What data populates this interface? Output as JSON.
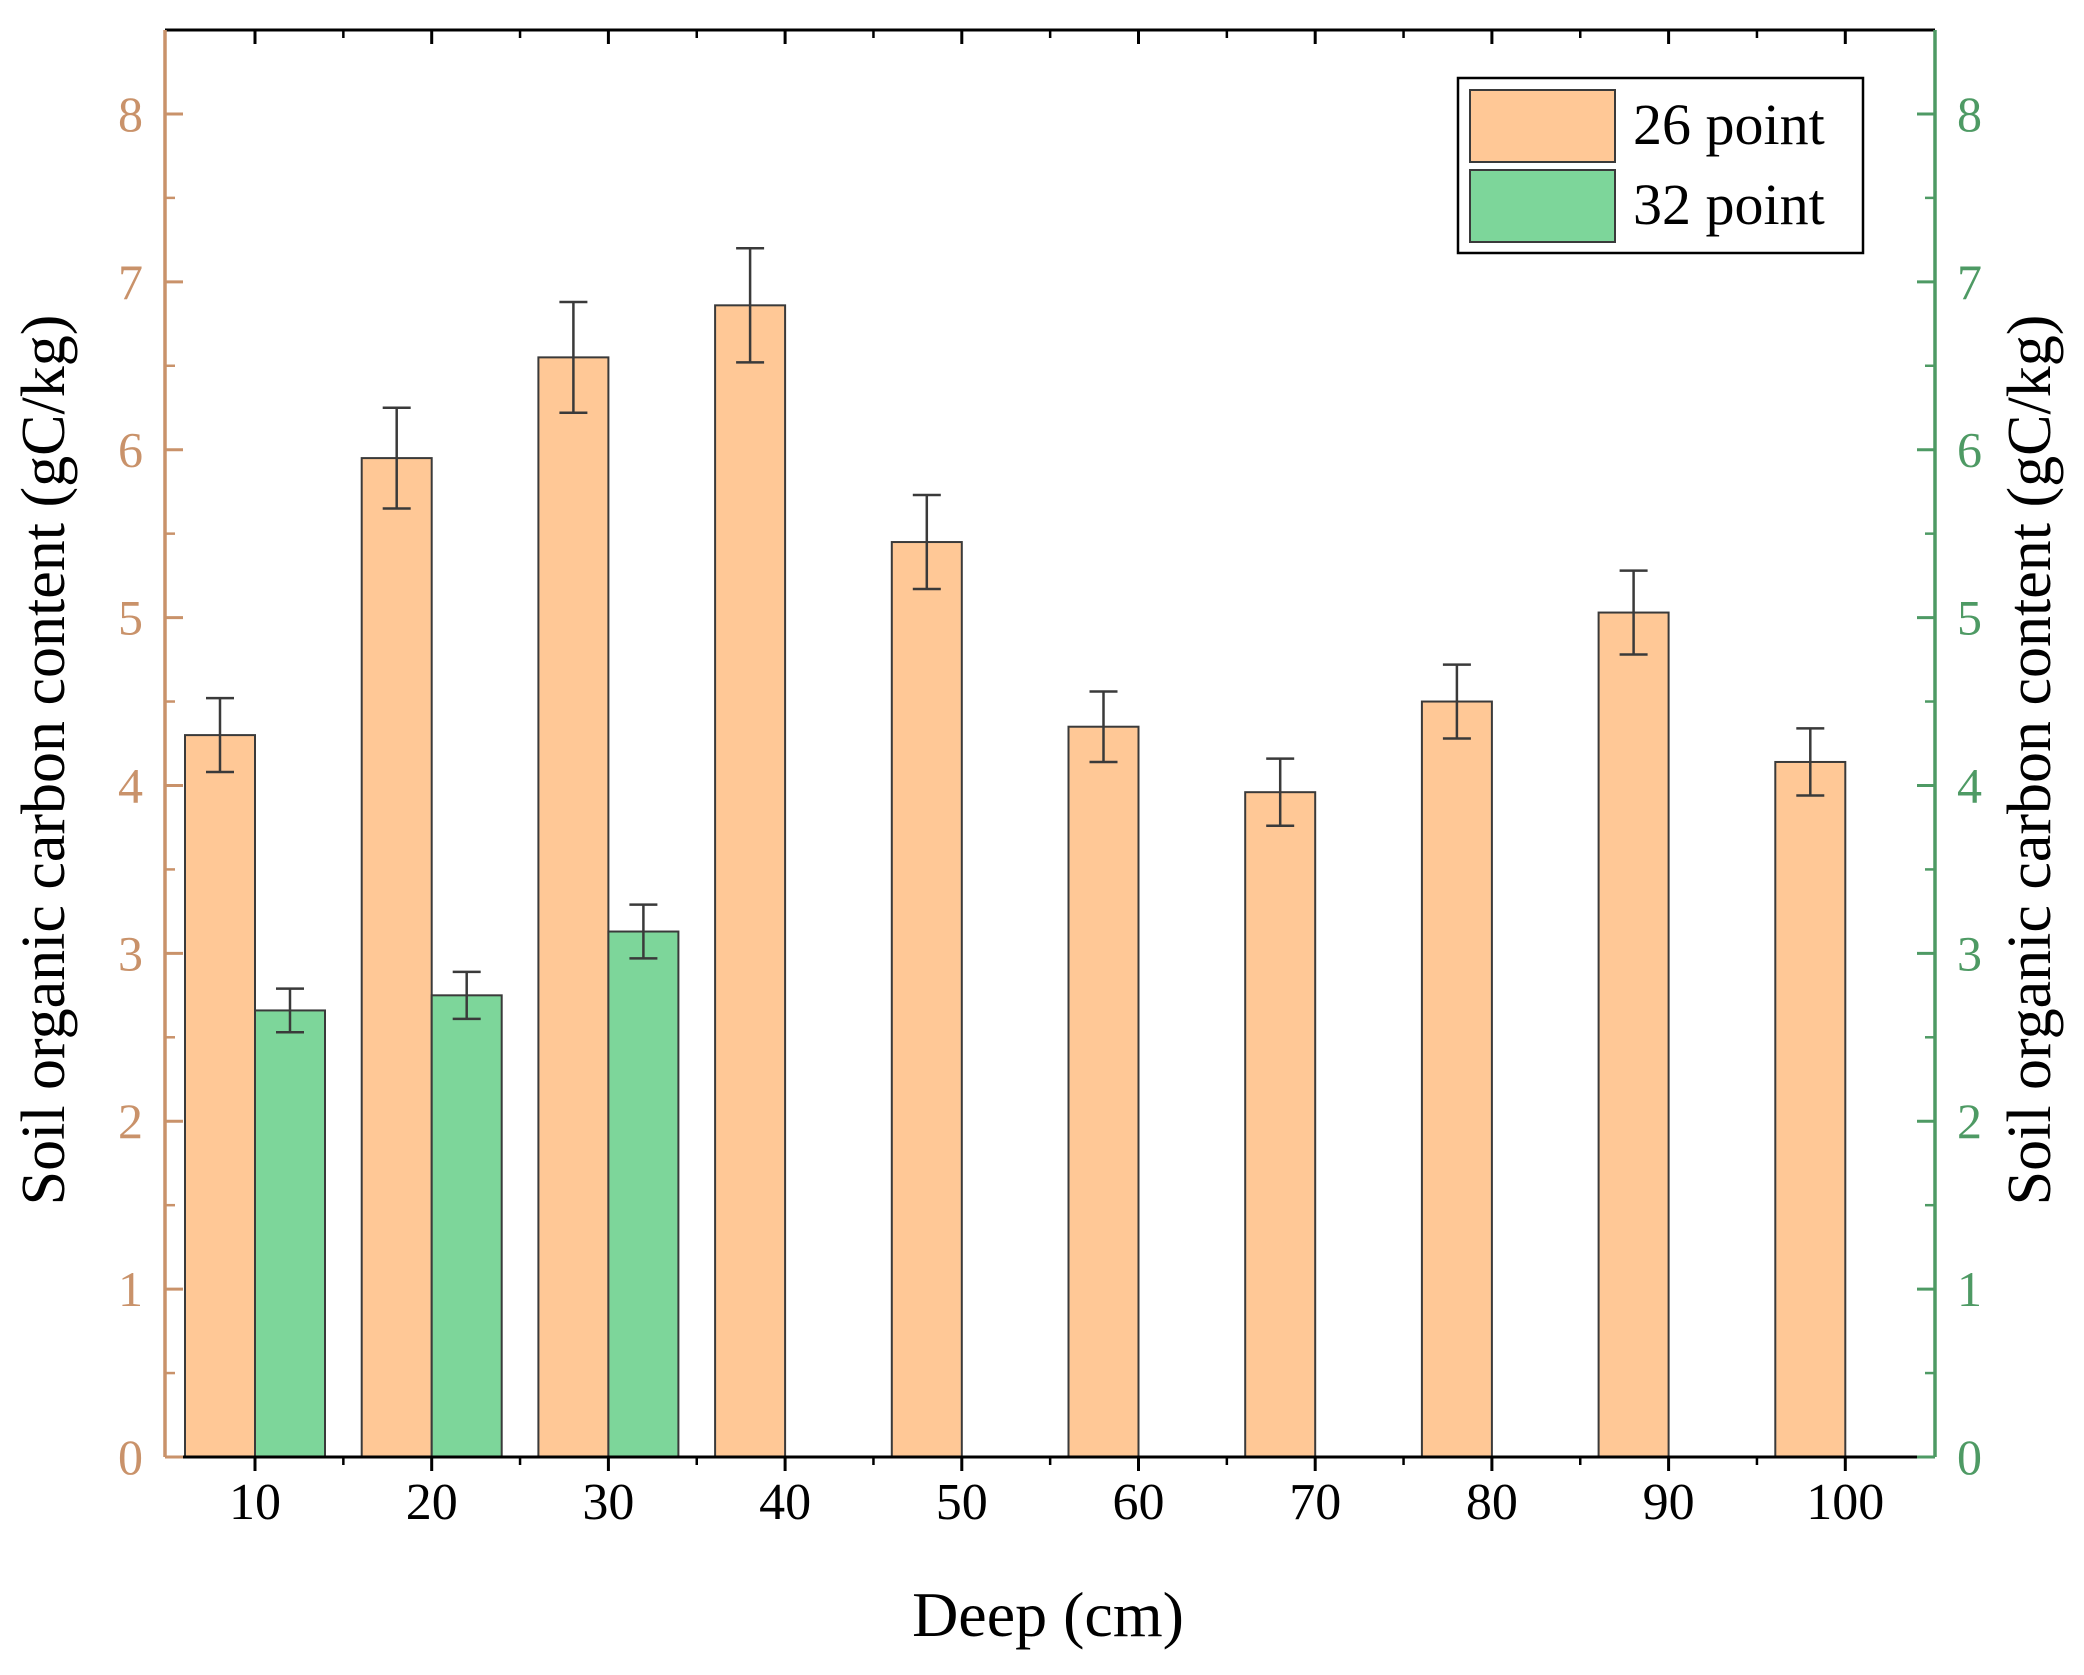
{
  "chart_data": {
    "type": "bar",
    "title": "",
    "xlabel": "Deep (cm)",
    "ylabel_left": "Soil organic carbon content (gC/kg)",
    "ylabel_right": "Soil organic carbon content (gC/kg)",
    "ylim": [
      0,
      8.5
    ],
    "yticks": [
      "0",
      "1",
      "2",
      "3",
      "4",
      "5",
      "6",
      "7",
      "8"
    ],
    "categories": [
      "10",
      "20",
      "30",
      "40",
      "50",
      "60",
      "70",
      "80",
      "90",
      "100"
    ],
    "legend_position": "top-right",
    "grid": false,
    "colors": {
      "left_axis": "#c9926a",
      "right_axis": "#4e9a64",
      "frame": "#000000"
    },
    "series": [
      {
        "name": "26 point",
        "color": "#ffc896",
        "values": [
          4.3,
          5.95,
          6.55,
          6.86,
          5.45,
          4.35,
          3.96,
          4.5,
          5.03,
          4.14
        ],
        "errors": [
          0.22,
          0.3,
          0.33,
          0.34,
          0.28,
          0.21,
          0.2,
          0.22,
          0.25,
          0.2
        ]
      },
      {
        "name": "32 point",
        "color": "#7dd69a",
        "values": [
          2.66,
          2.75,
          3.13,
          null,
          null,
          null,
          null,
          null,
          null,
          null
        ],
        "errors": [
          0.13,
          0.14,
          0.16,
          null,
          null,
          null,
          null,
          null,
          null,
          null
        ]
      }
    ]
  }
}
